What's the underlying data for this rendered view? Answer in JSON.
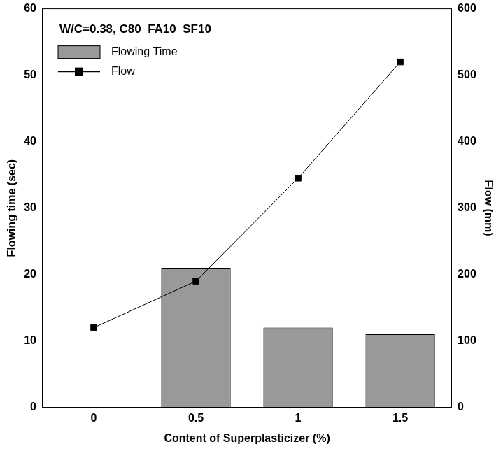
{
  "chart_data": {
    "type": "bar",
    "title": "W/C=0.38, C80_FA10_SF10",
    "x_label": "Content of Superplasticizer (%)",
    "y_label": "Flowing time (sec)",
    "y2_label": "Flow (mm)",
    "categories": [
      "0",
      "0.5",
      "1",
      "1.5"
    ],
    "series": [
      {
        "name": "Flowing Time",
        "type": "bar",
        "color": "#999999",
        "values": [
          null,
          21,
          12,
          11
        ]
      },
      {
        "name": "Flow",
        "type": "line",
        "color": "#000000",
        "marker": "square",
        "line_style": "solid",
        "axis": "y2",
        "values": [
          120,
          190,
          345,
          520
        ]
      }
    ],
    "ylim": [
      0,
      60
    ],
    "yticks": [
      0,
      10,
      20,
      30,
      40,
      50,
      60
    ],
    "y2lim": [
      0,
      600
    ],
    "y2ticks": [
      0,
      100,
      200,
      300,
      400,
      500,
      600
    ],
    "grid": false,
    "legend": "upper left"
  }
}
